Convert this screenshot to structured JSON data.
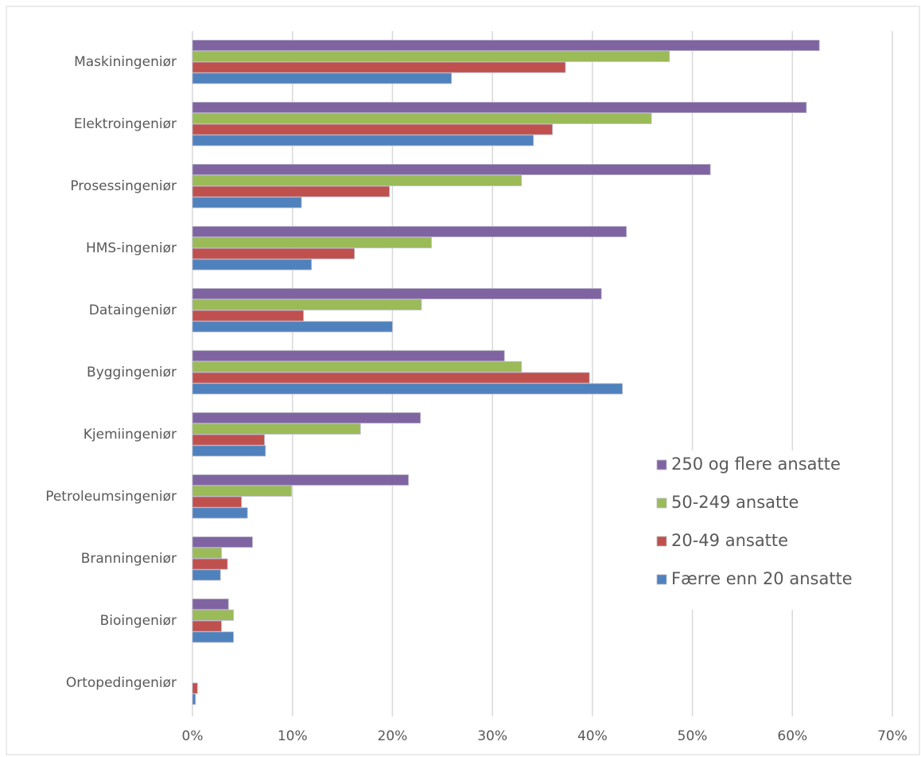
{
  "chart_data": {
    "type": "barh",
    "categories": [
      "Maskiningeniør",
      "Elektroingeniør",
      "Prosessingeniør",
      "HMS-ingeniør",
      "Dataingeniør",
      "Byggingeniør",
      "Kjemiingeniør",
      "Petroleumsingeniør",
      "Branningeniør",
      "Bioingeniør",
      "Ortopedingeniør"
    ],
    "series": [
      {
        "name": "250 og flere ansatte",
        "color": "#8064a2",
        "values": [
          62.7,
          61.4,
          51.8,
          43.4,
          40.9,
          31.2,
          22.8,
          21.6,
          6.0,
          3.6,
          0
        ]
      },
      {
        "name": "50-249 ansatte",
        "color": "#9bbb59",
        "values": [
          47.7,
          45.9,
          32.9,
          23.9,
          22.9,
          32.9,
          16.8,
          9.9,
          2.9,
          4.1,
          0
        ]
      },
      {
        "name": "20-49 ansatte",
        "color": "#c0504d",
        "values": [
          37.3,
          36.0,
          19.7,
          16.2,
          11.1,
          39.7,
          7.2,
          4.9,
          3.5,
          2.9,
          0.5
        ]
      },
      {
        "name": "Færre enn 20 ansatte",
        "color": "#4f81bd",
        "values": [
          25.9,
          34.1,
          10.9,
          11.9,
          20.0,
          43.0,
          7.3,
          5.5,
          2.8,
          4.1,
          0.3
        ]
      }
    ],
    "xlim": [
      0,
      70
    ],
    "xticks": [
      {
        "value": 0,
        "label": "0%"
      },
      {
        "value": 10,
        "label": "10%"
      },
      {
        "value": 20,
        "label": "20%"
      },
      {
        "value": 30,
        "label": "30%"
      },
      {
        "value": 40,
        "label": "40%"
      },
      {
        "value": 50,
        "label": "50%"
      },
      {
        "value": 60,
        "label": "60%"
      },
      {
        "value": 70,
        "label": "70%"
      }
    ],
    "grid": true,
    "legend": "right"
  }
}
